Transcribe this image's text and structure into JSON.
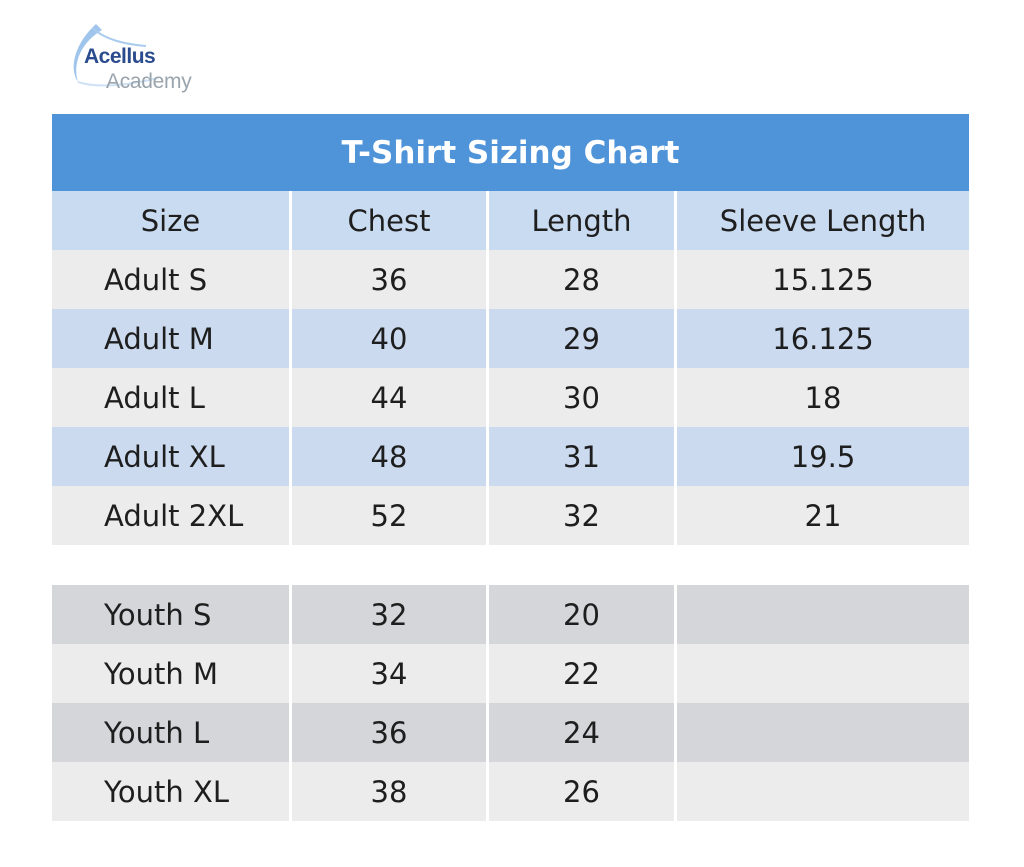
{
  "logo": {
    "line1": "Acellus",
    "line2": "Academy",
    "accent_color": "#2a4b8d",
    "secondary_color": "#9aa4ad"
  },
  "chart": {
    "title": "T-Shirt Sizing Chart",
    "title_bg": "#4f93d8",
    "header_bg": "#c9dbf0",
    "columns": [
      "Size",
      "Chest",
      "Length",
      "Sleeve Length"
    ]
  },
  "chart_data": {
    "type": "table",
    "title": "T-Shirt Sizing Chart",
    "columns": [
      "Size",
      "Chest",
      "Length",
      "Sleeve Length"
    ],
    "rows": [
      [
        "Adult S",
        "36",
        "28",
        "15.125"
      ],
      [
        "Adult M",
        "40",
        "29",
        "16.125"
      ],
      [
        "Adult L",
        "44",
        "30",
        "18"
      ],
      [
        "Adult XL",
        "48",
        "31",
        "19.5"
      ],
      [
        "Adult 2XL",
        "52",
        "32",
        "21"
      ],
      [
        "Youth S",
        "32",
        "20",
        ""
      ],
      [
        "Youth M",
        "34",
        "22",
        ""
      ],
      [
        "Youth L",
        "36",
        "24",
        ""
      ],
      [
        "Youth XL",
        "38",
        "26",
        ""
      ]
    ]
  },
  "adult": [
    {
      "size": "Adult S",
      "chest": "36",
      "length": "28",
      "sleeve": "15.125"
    },
    {
      "size": "Adult M",
      "chest": "40",
      "length": "29",
      "sleeve": "16.125"
    },
    {
      "size": "Adult L",
      "chest": "44",
      "length": "30",
      "sleeve": "18"
    },
    {
      "size": "Adult XL",
      "chest": "48",
      "length": "31",
      "sleeve": "19.5"
    },
    {
      "size": "Adult 2XL",
      "chest": "52",
      "length": "32",
      "sleeve": "21"
    }
  ],
  "youth": [
    {
      "size": "Youth S",
      "chest": "32",
      "length": "20",
      "sleeve": ""
    },
    {
      "size": "Youth M",
      "chest": "34",
      "length": "22",
      "sleeve": ""
    },
    {
      "size": "Youth L",
      "chest": "36",
      "length": "24",
      "sleeve": ""
    },
    {
      "size": "Youth XL",
      "chest": "38",
      "length": "26",
      "sleeve": ""
    }
  ]
}
